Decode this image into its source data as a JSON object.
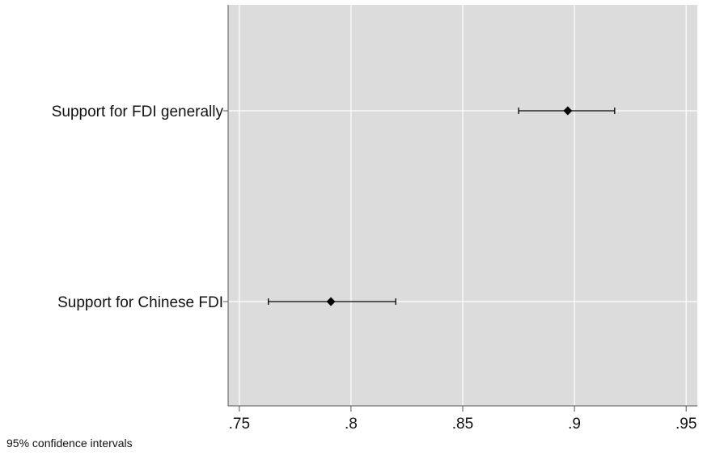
{
  "chart_data": {
    "type": "scatter",
    "subtype": "coefficient-plot-with-confidence-intervals",
    "categories": [
      "Support for FDI generally",
      "Support for Chinese FDI"
    ],
    "points": [
      {
        "label": "Support for FDI generally",
        "estimate": 0.897,
        "ci_low": 0.875,
        "ci_high": 0.918
      },
      {
        "label": "Support for Chinese FDI",
        "estimate": 0.791,
        "ci_low": 0.763,
        "ci_high": 0.82
      }
    ],
    "xlim": [
      0.745,
      0.955
    ],
    "xticks": [
      0.75,
      0.8,
      0.85,
      0.9,
      0.95
    ],
    "xtick_labels": [
      ".75",
      ".8",
      ".85",
      ".9",
      ".95"
    ],
    "grid": true,
    "legend": "none",
    "note": "95% confidence intervals",
    "colors": {
      "plot_background": "#dcdcdc",
      "grid": "#ffffff",
      "marker": "#000000",
      "axis": "#555555"
    }
  }
}
